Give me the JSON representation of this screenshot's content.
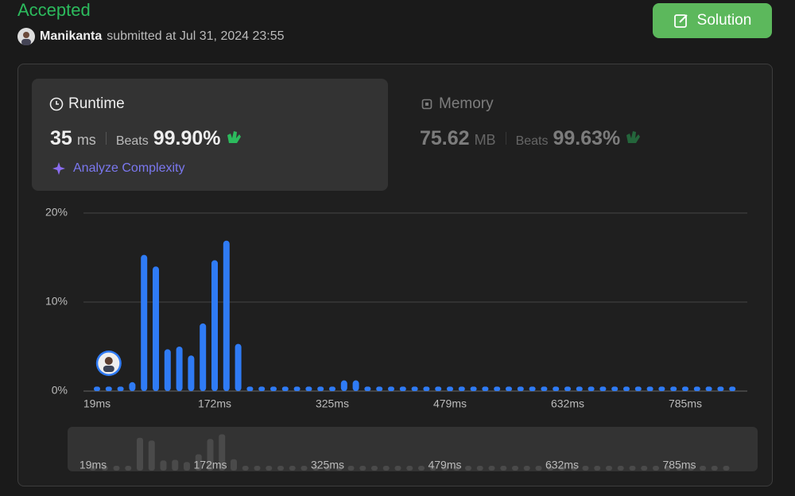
{
  "header": {
    "status": "Accepted",
    "user": "Manikanta",
    "submitted": "submitted at Jul 31, 2024 23:55"
  },
  "solution_button": "Solution",
  "runtime": {
    "title": "Runtime",
    "value": "35",
    "unit": "ms",
    "beats_label": "Beats",
    "beats": "99.90%"
  },
  "analyze": "Analyze Complexity",
  "memory": {
    "title": "Memory",
    "value": "75.62",
    "unit": "MB",
    "beats_label": "Beats",
    "beats": "99.63%"
  },
  "chart_data": {
    "type": "bar",
    "categories": [
      "19ms",
      null,
      null,
      null,
      null,
      null,
      null,
      null,
      null,
      null,
      "172ms",
      null,
      null,
      null,
      null,
      null,
      null,
      null,
      null,
      null,
      "325ms",
      null,
      null,
      null,
      null,
      null,
      null,
      null,
      null,
      null,
      "479ms",
      null,
      null,
      null,
      null,
      null,
      null,
      null,
      null,
      null,
      "632ms",
      null,
      null,
      null,
      null,
      null,
      null,
      null,
      null,
      null,
      "785ms",
      null,
      null,
      null,
      null
    ],
    "values": [
      0.5,
      0.5,
      0.5,
      1,
      15.3,
      14,
      4.7,
      5,
      4,
      7.6,
      14.7,
      16.9,
      5.3,
      0.5,
      0.5,
      0.5,
      0.5,
      0.5,
      0.5,
      0.5,
      0.5,
      1.2,
      1.2,
      0.5,
      0.5,
      0.5,
      0.5,
      0.5,
      0.5,
      0.5,
      0.5,
      0.5,
      0.5,
      0.5,
      0.5,
      0.5,
      0.5,
      0.5,
      0.5,
      0.5,
      0.5,
      0.5,
      0.5,
      0.5,
      0.5,
      0.5,
      0.5,
      0.5,
      0.5,
      0.5,
      0.5,
      0.5,
      0.5,
      0.5,
      0.5
    ],
    "color": "#2f7bf5",
    "ylim": [
      0,
      20
    ],
    "yticks": [
      {
        "value": 0,
        "label": "0%"
      },
      {
        "value": 10,
        "label": "10%"
      },
      {
        "value": 20,
        "label": "20%"
      }
    ],
    "grid": true
  }
}
